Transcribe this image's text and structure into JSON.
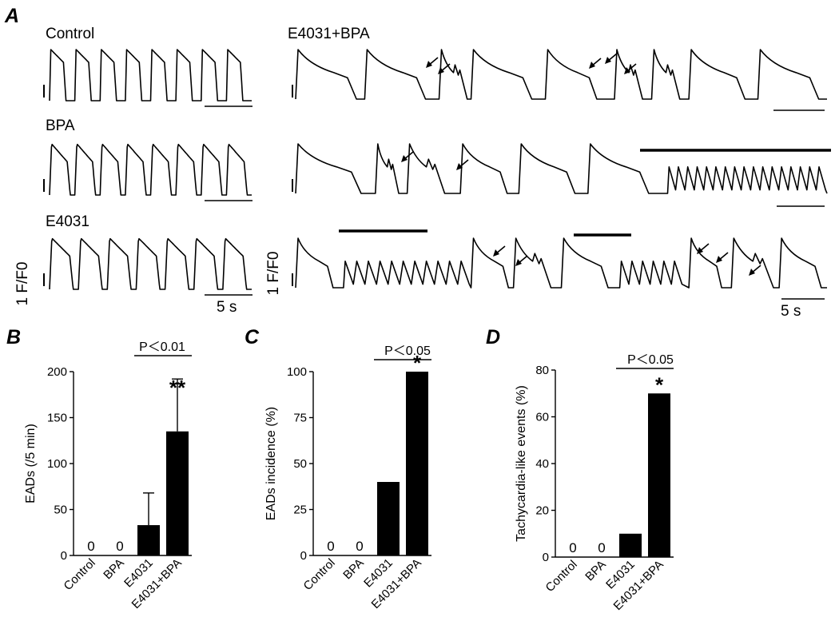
{
  "panel_a": {
    "letter": "A",
    "traces": [
      {
        "label": "Control",
        "scale": ""
      },
      {
        "label": "BPA",
        "scale": ""
      },
      {
        "label": "E4031",
        "scale": "1 F/F0"
      },
      {
        "label": "E4031+BPA",
        "scale": ""
      },
      {
        "label": "",
        "scale": ""
      },
      {
        "label": "",
        "scale": "1 F/F0"
      }
    ],
    "time_scale": "5 s"
  },
  "chart_data": [
    {
      "panel": "B",
      "type": "bar",
      "categories": [
        "Control",
        "BPA",
        "E4031",
        "E4031+BPA"
      ],
      "values": [
        0,
        0,
        33,
        135
      ],
      "errors": [
        0,
        0,
        35,
        57
      ],
      "zero_labels": [
        "0",
        "0",
        "",
        ""
      ],
      "significance": [
        "",
        "",
        "",
        "**"
      ],
      "comparison": "P＜0.01",
      "ylabel": "EADs (/5 min)",
      "ylim": [
        0,
        200
      ],
      "yticks": [
        0,
        50,
        100,
        150,
        200
      ]
    },
    {
      "panel": "C",
      "type": "bar",
      "categories": [
        "Control",
        "BPA",
        "E4031",
        "E4031+BPA"
      ],
      "values": [
        0,
        0,
        40,
        100
      ],
      "zero_labels": [
        "0",
        "0",
        "",
        ""
      ],
      "significance": [
        "",
        "",
        "",
        "*"
      ],
      "comparison": "P＜0.05",
      "ylabel": "EADs incidence (%)",
      "ylim": [
        0,
        100
      ],
      "yticks": [
        0,
        25,
        50,
        75,
        100
      ]
    },
    {
      "panel": "D",
      "type": "bar",
      "categories": [
        "Control",
        "BPA",
        "E4031",
        "E4031+BPA"
      ],
      "values": [
        0,
        0,
        10,
        70
      ],
      "zero_labels": [
        "0",
        "0",
        "",
        ""
      ],
      "significance": [
        "",
        "",
        "",
        "*"
      ],
      "comparison": "P＜0.05",
      "ylabel": "Tachycardia-like events (%)",
      "ylim": [
        0,
        80
      ],
      "yticks": [
        0,
        20,
        40,
        60,
        80
      ]
    }
  ]
}
